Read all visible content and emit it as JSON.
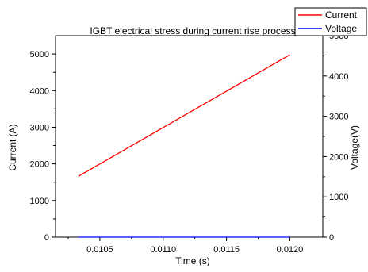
{
  "chart_data": {
    "type": "line",
    "title": "IGBT electrical stress during current rise process",
    "xlabel": "Time (s)",
    "ylabel": "Current (A)",
    "y2label": "Voltage(V)",
    "xlim": [
      0.01015,
      0.01226
    ],
    "ylim": [
      0,
      5500
    ],
    "y2lim": [
      0,
      5000
    ],
    "grid": false,
    "legend_position": "top-right",
    "x_ticks": [
      {
        "value": 0.0105,
        "label": "0.0105"
      },
      {
        "value": 0.011,
        "label": "0.0110"
      },
      {
        "value": 0.0115,
        "label": "0.0115"
      },
      {
        "value": 0.012,
        "label": "0.0120"
      }
    ],
    "y_ticks": [
      {
        "value": 0,
        "label": "0"
      },
      {
        "value": 1000,
        "label": "1000"
      },
      {
        "value": 2000,
        "label": "2000"
      },
      {
        "value": 3000,
        "label": "3000"
      },
      {
        "value": 4000,
        "label": "4000"
      },
      {
        "value": 5000,
        "label": "5000"
      }
    ],
    "y2_ticks": [
      {
        "value": 0,
        "label": "0"
      },
      {
        "value": 1000,
        "label": "1000"
      },
      {
        "value": 2000,
        "label": "2000"
      },
      {
        "value": 3000,
        "label": "3000"
      },
      {
        "value": 4000,
        "label": "4000"
      },
      {
        "value": 5000,
        "label": "5000"
      }
    ],
    "series": [
      {
        "name": "Current",
        "color": "#ff0000",
        "axis": "left",
        "x": [
          0.01033,
          0.012
        ],
        "values": [
          1660,
          4980
        ]
      },
      {
        "name": "Voltage",
        "color": "#0000ff",
        "axis": "right",
        "x": [
          0.01033,
          0.012
        ],
        "values": [
          0,
          0
        ]
      }
    ]
  }
}
